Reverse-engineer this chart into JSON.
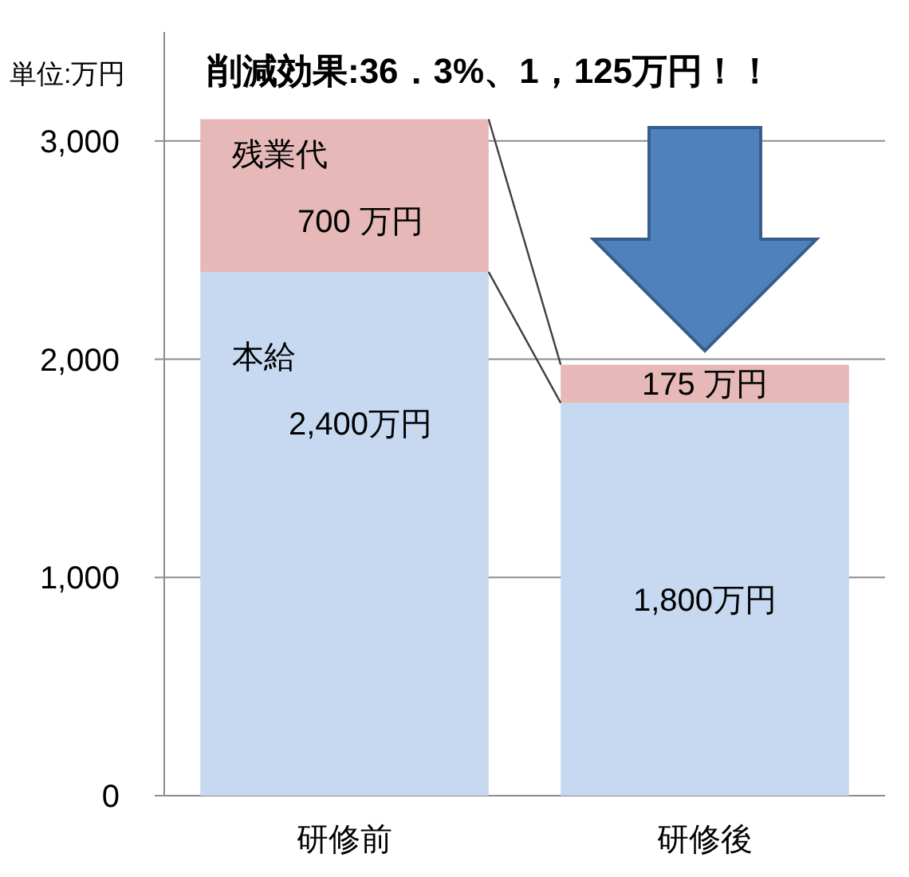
{
  "chart_data": {
    "type": "bar",
    "stacked": true,
    "title": "削減効果:36．3%、1，125万円！！",
    "ylabel": "単位:万円",
    "categories": [
      "研修前",
      "研修後"
    ],
    "series": [
      {
        "name": "本給",
        "color": "#c6d9f1",
        "values": [
          2400,
          1800
        ],
        "value_labels": [
          "2,400万円",
          "1,800万円"
        ]
      },
      {
        "name": "残業代",
        "color": "#e6b9b8",
        "values": [
          700,
          175
        ],
        "value_labels": [
          "700 万円",
          "175 万円"
        ]
      }
    ],
    "ylim": [
      0,
      3500
    ],
    "yticks": [
      {
        "value": 0,
        "label": "0"
      },
      {
        "value": 1000,
        "label": "1,000"
      },
      {
        "value": 2000,
        "label": "2,000"
      },
      {
        "value": 3000,
        "label": "3,000"
      }
    ],
    "grid": "y",
    "legend": false
  }
}
